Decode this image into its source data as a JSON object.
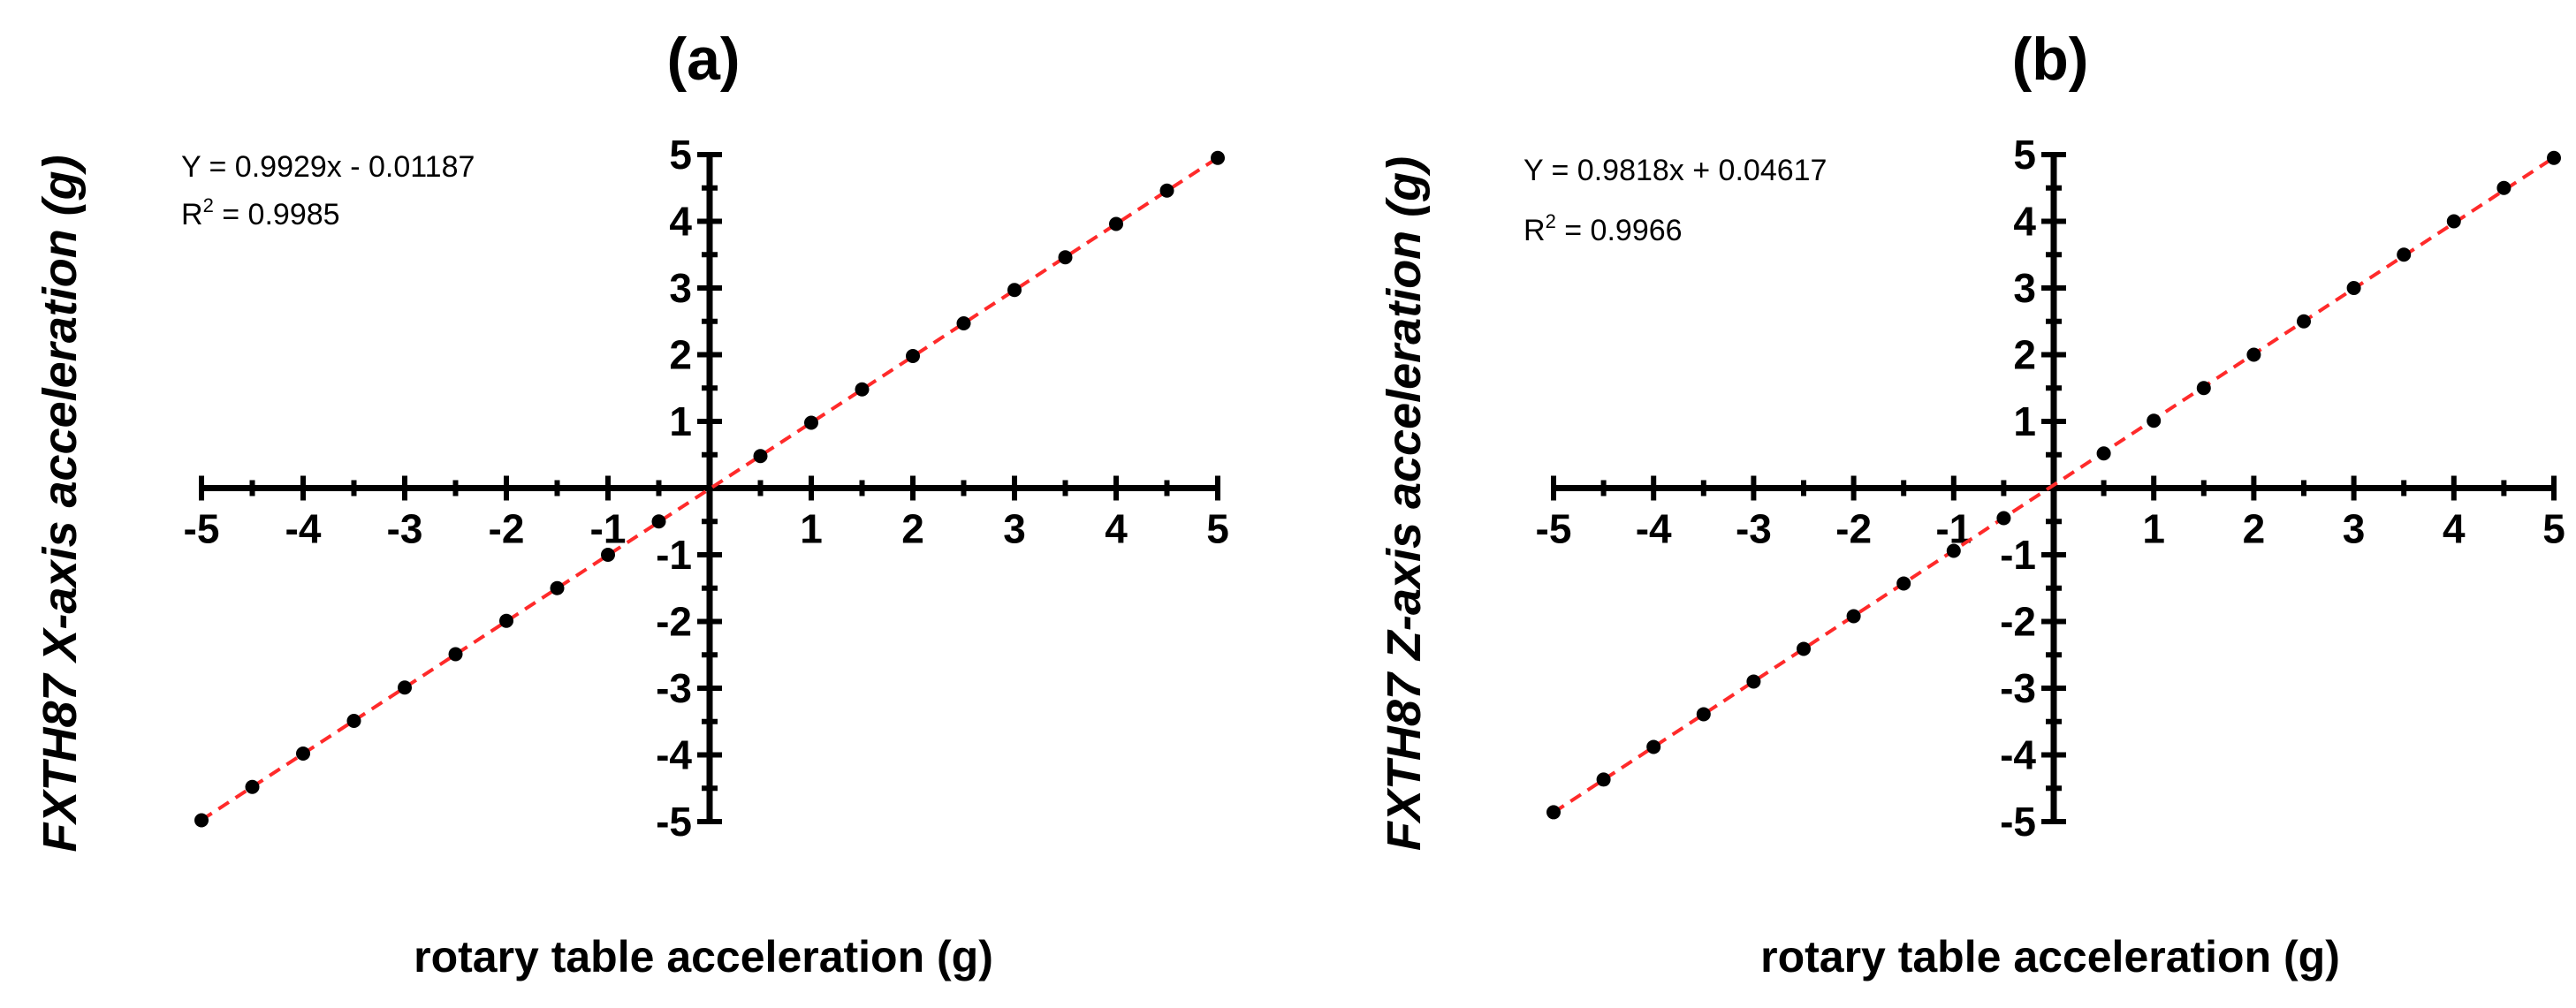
{
  "chart_data": [
    {
      "type": "scatter",
      "title": "(a)",
      "ylabel": "FXTH87 X-axis acceleration (g)",
      "xlabel": "rotary table acceleration (g)",
      "equation": "Y = 0.9929x - 0.01187",
      "r2_prefix": "R",
      "r2_sup": "2",
      "r2_value": " = 0.9985",
      "fit": {
        "slope": 0.9929,
        "intercept": -0.01187
      },
      "xlim": [
        -5,
        5
      ],
      "ylim": [
        -5,
        5
      ],
      "x_tick_labels": [
        "-5",
        "-4",
        "-3",
        "-2",
        "-1",
        "1",
        "2",
        "3",
        "4",
        "5"
      ],
      "y_tick_labels": [
        "5",
        "4",
        "3",
        "2",
        "1",
        "-1",
        "-2",
        "-3",
        "-4",
        "-5"
      ],
      "grid": false,
      "x": [
        -5,
        -4.5,
        -4,
        -3.5,
        -3,
        -2.5,
        -2,
        -1.5,
        -1,
        -0.5,
        0.5,
        1,
        1.5,
        2,
        2.5,
        3,
        3.5,
        4,
        4.5,
        5
      ],
      "y": [
        -4.98,
        -4.48,
        -3.98,
        -3.49,
        -2.99,
        -2.49,
        -1.99,
        -1.5,
        -1.0,
        -0.5,
        0.48,
        0.98,
        1.48,
        1.98,
        2.47,
        2.97,
        3.46,
        3.96,
        4.46,
        4.95
      ]
    },
    {
      "type": "scatter",
      "title": "(b)",
      "ylabel": "FXTH87 Z-axis acceleration (g)",
      "xlabel": "rotary table acceleration (g)",
      "equation": "Y = 0.9818x + 0.04617",
      "r2_prefix": "R",
      "r2_sup": "2",
      "r2_value": " = 0.9966",
      "fit": {
        "slope": 0.9818,
        "intercept": 0.04617
      },
      "xlim": [
        -5,
        5
      ],
      "ylim": [
        -5,
        5
      ],
      "x_tick_labels": [
        "-5",
        "-4",
        "-3",
        "-2",
        "-1",
        "1",
        "2",
        "3",
        "4",
        "5"
      ],
      "y_tick_labels": [
        "5",
        "4",
        "3",
        "2",
        "1",
        "-1",
        "-2",
        "-3",
        "-4",
        "-5"
      ],
      "grid": false,
      "x": [
        -5,
        -4.5,
        -4,
        -3.5,
        -3,
        -2.5,
        -2,
        -1.5,
        -1,
        -0.5,
        0.5,
        1,
        1.5,
        2,
        2.5,
        3,
        3.5,
        4,
        4.5,
        5
      ],
      "y": [
        -4.86,
        -4.37,
        -3.88,
        -3.39,
        -2.9,
        -2.41,
        -1.92,
        -1.43,
        -0.94,
        -0.45,
        0.52,
        1.01,
        1.5,
        2.0,
        2.5,
        3.0,
        3.5,
        4.0,
        4.5,
        4.95
      ]
    }
  ]
}
